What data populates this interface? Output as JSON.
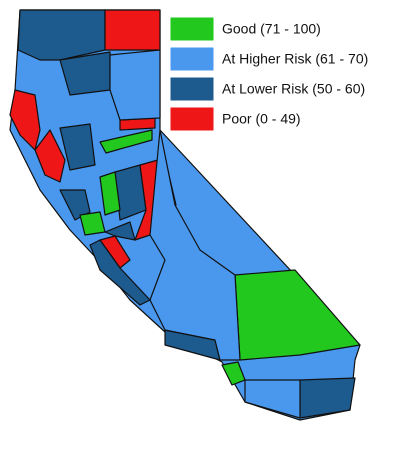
{
  "legend": {
    "items": [
      {
        "label": "Good (71 - 100)",
        "color": "#22c81e"
      },
      {
        "label": "At Higher Risk (61 - 70)",
        "color": "#4a98ee"
      },
      {
        "label": "At Lower Risk (50 - 60)",
        "color": "#1d5a8e"
      },
      {
        "label": "Poor (0 - 49)",
        "color": "#ee1616"
      }
    ]
  }
}
